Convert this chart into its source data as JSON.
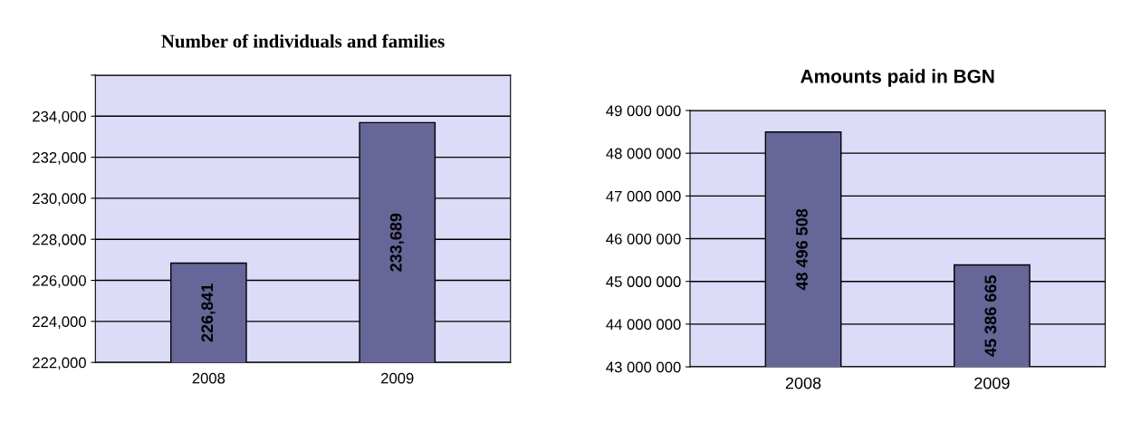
{
  "chart_data": [
    {
      "type": "bar",
      "title": "Number of individuals and families",
      "categories": [
        "2008",
        "2009"
      ],
      "values": [
        226841,
        233689
      ],
      "value_labels": [
        "226,841",
        "233,689"
      ],
      "color": "#666699",
      "ylim": [
        222000,
        236000
      ],
      "yticks": [
        {
          "value": 222000,
          "label": "222,000"
        },
        {
          "value": 224000,
          "label": "224,000"
        },
        {
          "value": 226000,
          "label": "226,000"
        },
        {
          "value": 228000,
          "label": "228,000"
        },
        {
          "value": 230000,
          "label": "230,000"
        },
        {
          "value": 232000,
          "label": "232,000"
        },
        {
          "value": 234000,
          "label": "234,000"
        },
        {
          "value": 236000,
          "label": null
        }
      ],
      "grid": "y"
    },
    {
      "type": "bar",
      "title": "Amounts paid in BGN",
      "categories": [
        "2008",
        "2009"
      ],
      "values": [
        48496508,
        45386665
      ],
      "value_labels": [
        "48 496 508",
        "45 386 665"
      ],
      "color": "#666699",
      "ylim": [
        43000000,
        49000000
      ],
      "yticks": [
        {
          "value": 43000000,
          "label": "43 000 000"
        },
        {
          "value": 44000000,
          "label": "44 000 000"
        },
        {
          "value": 45000000,
          "label": "45 000 000"
        },
        {
          "value": 46000000,
          "label": "46 000 000"
        },
        {
          "value": 47000000,
          "label": "47 000 000"
        },
        {
          "value": 48000000,
          "label": "48 000 000"
        },
        {
          "value": 49000000,
          "label": "49 000 000"
        }
      ],
      "grid": "y"
    }
  ]
}
